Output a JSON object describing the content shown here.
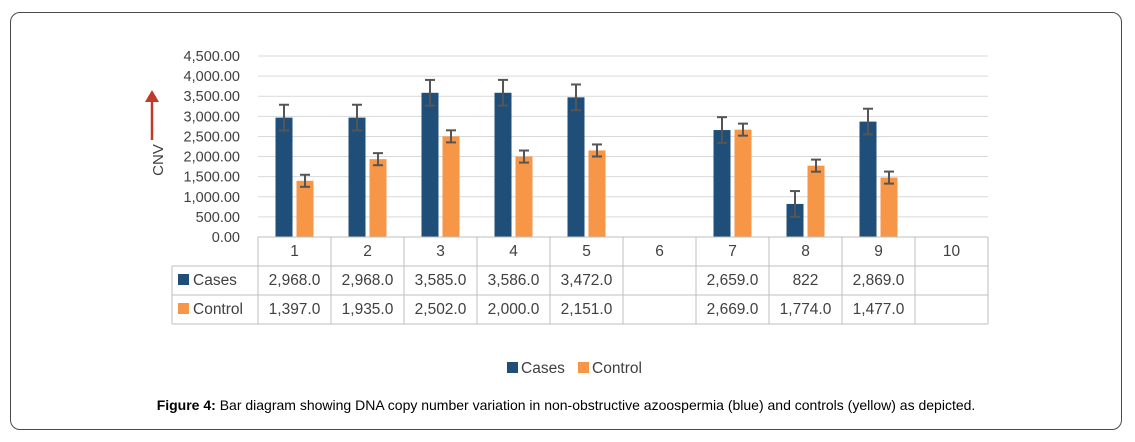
{
  "chart_data": {
    "type": "bar",
    "ylabel": "CNV",
    "ylim": [
      0,
      4500
    ],
    "yticks": [
      "0.00",
      "500.00",
      "1,000.00",
      "1,500.00",
      "2,000.00",
      "2,500.00",
      "3,000.00",
      "3,500.00",
      "4,000.00",
      "4,500.00"
    ],
    "ytick_values": [
      0,
      500,
      1000,
      1500,
      2000,
      2500,
      3000,
      3500,
      4000,
      4500
    ],
    "categories": [
      "1",
      "2",
      "3",
      "4",
      "5",
      "6",
      "7",
      "8",
      "9",
      "10"
    ],
    "series": [
      {
        "name": "Cases",
        "color": "#1f4e79",
        "values": [
          2968,
          2968,
          3585,
          3586,
          3472,
          null,
          2659,
          822,
          2869,
          null
        ],
        "labels": [
          "2,968.0",
          "2,968.0",
          "3,585.0",
          "3,586.0",
          "3,472.0",
          "",
          "2,659.0",
          "822",
          "2,869.0",
          ""
        ],
        "error": [
          320,
          320,
          320,
          320,
          320,
          null,
          320,
          320,
          320,
          null
        ]
      },
      {
        "name": "Control",
        "color": "#f79646",
        "values": [
          1397,
          1935,
          2502,
          2000,
          2151,
          null,
          2669,
          1774,
          1477,
          null
        ],
        "labels": [
          "1,397.0",
          "1,935.0",
          "2,502.0",
          "2,000.0",
          "2,151.0",
          "",
          "2,669.0",
          "1,774.0",
          "1,477.0",
          ""
        ],
        "error": [
          150,
          150,
          150,
          150,
          150,
          null,
          150,
          150,
          150,
          null
        ]
      }
    ],
    "legend": [
      "Cases",
      "Control"
    ],
    "legend_position": "bottom",
    "grid": true,
    "data_table": true
  },
  "caption": {
    "label": "Figure 4:",
    "text": " Bar diagram showing DNA copy number variation in non-obstructive azoospermia (blue) and controls (yellow) as depicted."
  }
}
